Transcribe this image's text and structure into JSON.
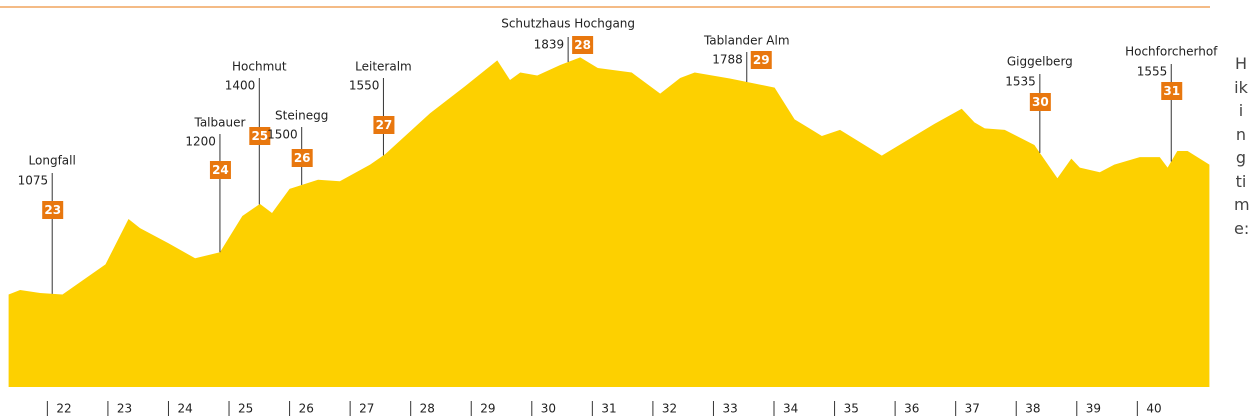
{
  "chart_data": {
    "type": "area",
    "color": "#fdd000",
    "accent": "#e8770e",
    "side_label": "Hiking time:",
    "x": [
      21.36,
      21.55,
      21.88,
      22.25,
      22.96,
      23.34,
      23.53,
      24.0,
      24.44,
      24.85,
      25.22,
      25.51,
      25.71,
      26.0,
      26.47,
      26.83,
      27.33,
      27.58,
      28.32,
      28.9,
      29.43,
      29.64,
      29.81,
      30.09,
      30.47,
      30.8,
      31.09,
      31.65,
      32.12,
      32.45,
      32.69,
      33.27,
      34.01,
      34.34,
      34.79,
      35.09,
      35.78,
      36.65,
      37.1,
      37.31,
      37.48,
      37.81,
      38.3,
      38.68,
      38.91,
      39.05,
      39.38,
      39.62,
      40.04,
      40.37,
      40.5,
      40.66,
      40.83,
      41.19
    ],
    "values": [
      1070,
      1085,
      1075,
      1070,
      1170,
      1320,
      1290,
      1240,
      1190,
      1210,
      1330,
      1370,
      1340,
      1420,
      1450,
      1445,
      1500,
      1535,
      1670,
      1760,
      1845,
      1780,
      1805,
      1795,
      1830,
      1855,
      1820,
      1805,
      1735,
      1787,
      1805,
      1785,
      1755,
      1650,
      1595,
      1615,
      1530,
      1635,
      1685,
      1640,
      1620,
      1615,
      1565,
      1455,
      1520,
      1490,
      1475,
      1500,
      1525,
      1525,
      1490,
      1545,
      1545,
      1500
    ],
    "xlim": [
      21.35,
      41.2
    ],
    "ylim": [
      764,
      2045
    ],
    "xticks": [
      22,
      23,
      24,
      25,
      26,
      27,
      28,
      29,
      30,
      31,
      32,
      33,
      34,
      35,
      36,
      37,
      38,
      39,
      40
    ],
    "stations": [
      {
        "name": "Longfall",
        "elevation": 1075,
        "number": 23,
        "x": 22.08
      },
      {
        "name": "Talbauer",
        "elevation": 1200,
        "number": 24,
        "x": 24.85
      },
      {
        "name": "Hochmut",
        "elevation": 1400,
        "number": 25,
        "x": 25.5
      },
      {
        "name": "Steinegg",
        "elevation": 1500,
        "number": 26,
        "x": 26.2
      },
      {
        "name": "Leiteralm",
        "elevation": 1550,
        "number": 27,
        "x": 27.55
      },
      {
        "name": "Schutzhaus Hochgang",
        "elevation": 1839,
        "number": 28,
        "x": 30.6
      },
      {
        "name": "Tablander Alm",
        "elevation": 1788,
        "number": 29,
        "x": 33.55
      },
      {
        "name": "Giggelberg",
        "elevation": 1535,
        "number": 30,
        "x": 38.39
      },
      {
        "name": "Hochforcherhof",
        "elevation": 1555,
        "number": 31,
        "x": 40.56
      }
    ]
  }
}
